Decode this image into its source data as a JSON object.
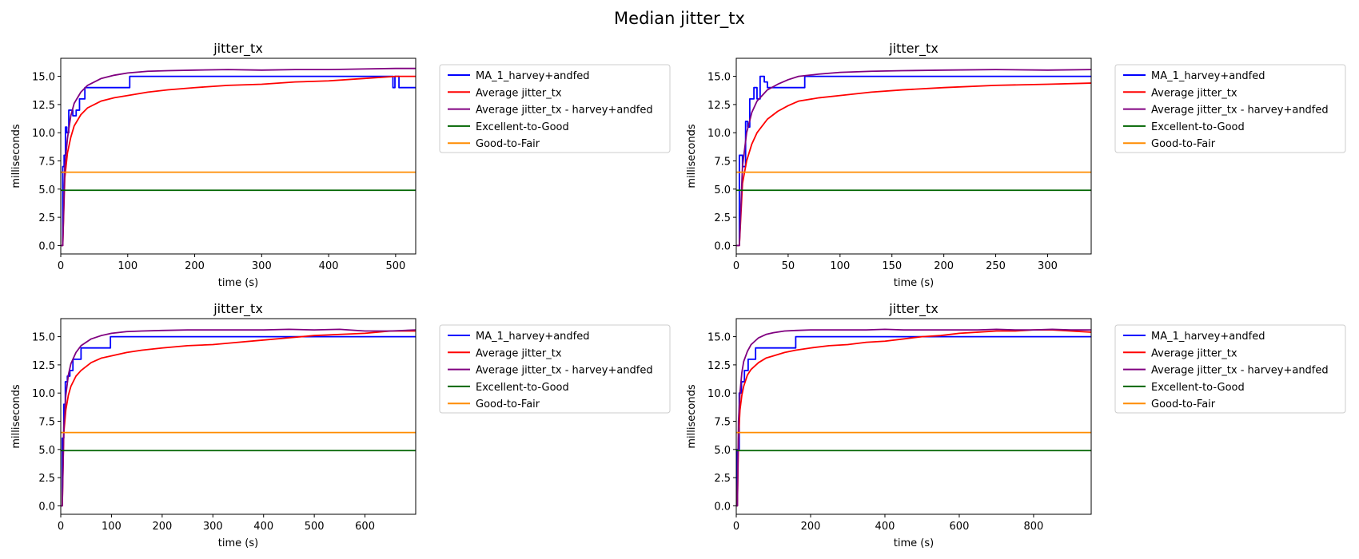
{
  "figure": {
    "suptitle": "Median jitter_tx"
  },
  "colors": {
    "MA_1_harvey+andfed": "#0000ff",
    "Average jitter_tx": "#ff0000",
    "Average jitter_tx - harvey+andfed": "#800080",
    "Excellent-to-Good": "#006400",
    "Good-to-Fair": "#ff8c00"
  },
  "chart_data": [
    {
      "type": "line",
      "title": "jitter_tx",
      "xlabel": "time (s)",
      "ylabel": "milliseconds",
      "xlim": [
        0,
        530
      ],
      "ylim": [
        -0.75,
        16.6
      ],
      "xticks": [
        0,
        100,
        200,
        300,
        400,
        500
      ],
      "yticks": [
        0.0,
        2.5,
        5.0,
        7.5,
        10.0,
        12.5,
        15.0
      ],
      "grid": false,
      "legend": "outside-right-top",
      "series": [
        {
          "name": "MA_1_harvey+andfed",
          "x": [
            0,
            3,
            3,
            5,
            5,
            7,
            7,
            9,
            9,
            12,
            12,
            18,
            18,
            23,
            23,
            28,
            28,
            36,
            36,
            103,
            103,
            496,
            496,
            499,
            499,
            505,
            505,
            530
          ],
          "y": [
            0,
            0,
            7,
            7,
            8,
            8,
            10.5,
            10.5,
            10,
            10,
            12,
            12,
            11.5,
            11.5,
            12,
            12,
            13,
            13,
            14,
            14,
            15,
            15,
            14,
            14,
            15,
            15,
            14,
            14
          ]
        },
        {
          "name": "Average jitter_tx",
          "x": [
            0,
            3,
            6,
            10,
            15,
            20,
            30,
            40,
            60,
            80,
            100,
            130,
            160,
            200,
            250,
            300,
            350,
            400,
            450,
            500,
            530
          ],
          "y": [
            0,
            0,
            6,
            8.2,
            9.6,
            10.6,
            11.6,
            12.2,
            12.8,
            13.1,
            13.3,
            13.6,
            13.8,
            14,
            14.2,
            14.3,
            14.5,
            14.6,
            14.8,
            15,
            15
          ]
        },
        {
          "name": "Average jitter_tx - harvey+andfed",
          "x": [
            0,
            3,
            6,
            10,
            15,
            20,
            30,
            40,
            60,
            80,
            100,
            130,
            160,
            200,
            250,
            300,
            350,
            400,
            450,
            500,
            530
          ],
          "y": [
            0,
            0,
            7,
            9.5,
            11.5,
            12.6,
            13.6,
            14.2,
            14.8,
            15.1,
            15.3,
            15.45,
            15.5,
            15.55,
            15.6,
            15.55,
            15.6,
            15.6,
            15.65,
            15.7,
            15.7
          ]
        },
        {
          "name": "Excellent-to-Good",
          "x": [
            0,
            530
          ],
          "y": [
            4.9,
            4.9
          ]
        },
        {
          "name": "Good-to-Fair",
          "x": [
            0,
            530
          ],
          "y": [
            6.5,
            6.5
          ]
        }
      ]
    },
    {
      "type": "line",
      "title": "jitter_tx",
      "xlabel": "time (s)",
      "ylabel": "milliseconds",
      "xlim": [
        0,
        342
      ],
      "ylim": [
        -0.75,
        16.6
      ],
      "xticks": [
        0,
        50,
        100,
        150,
        200,
        250,
        300
      ],
      "yticks": [
        0.0,
        2.5,
        5.0,
        7.5,
        10.0,
        12.5,
        15.0
      ],
      "grid": false,
      "legend": "outside-right-top",
      "series": [
        {
          "name": "MA_1_harvey+andfed",
          "x": [
            0,
            3,
            3,
            6,
            6,
            9,
            9,
            11,
            11,
            13,
            13,
            17,
            17,
            20,
            20,
            23,
            23,
            27,
            27,
            30,
            30,
            66,
            66,
            342
          ],
          "y": [
            0,
            0,
            8,
            8,
            7,
            7,
            11,
            11,
            10.5,
            10.5,
            13,
            13,
            14,
            14,
            13,
            13,
            15,
            15,
            14.5,
            14.5,
            14,
            14,
            15,
            15
          ]
        },
        {
          "name": "Average jitter_tx",
          "x": [
            0,
            3,
            6,
            10,
            15,
            20,
            30,
            40,
            50,
            60,
            80,
            100,
            130,
            160,
            200,
            250,
            300,
            342
          ],
          "y": [
            0,
            0,
            5.5,
            7.5,
            9,
            10,
            11.2,
            11.9,
            12.4,
            12.8,
            13.1,
            13.3,
            13.6,
            13.8,
            14,
            14.2,
            14.3,
            14.4
          ]
        },
        {
          "name": "Average jitter_tx - harvey+andfed",
          "x": [
            0,
            3,
            6,
            10,
            15,
            20,
            30,
            40,
            50,
            60,
            80,
            100,
            130,
            160,
            200,
            250,
            300,
            342
          ],
          "y": [
            0,
            0,
            7,
            10,
            11.8,
            12.8,
            13.8,
            14.3,
            14.7,
            15,
            15.2,
            15.35,
            15.45,
            15.5,
            15.55,
            15.6,
            15.55,
            15.6
          ]
        },
        {
          "name": "Excellent-to-Good",
          "x": [
            0,
            342
          ],
          "y": [
            4.9,
            4.9
          ]
        },
        {
          "name": "Good-to-Fair",
          "x": [
            0,
            342
          ],
          "y": [
            6.5,
            6.5
          ]
        }
      ]
    },
    {
      "type": "line",
      "title": "jitter_tx",
      "xlabel": "time (s)",
      "ylabel": "milliseconds",
      "xlim": [
        0,
        700
      ],
      "ylim": [
        -0.75,
        16.6
      ],
      "xticks": [
        0,
        100,
        200,
        300,
        400,
        500,
        600
      ],
      "yticks": [
        0.0,
        2.5,
        5.0,
        7.5,
        10.0,
        12.5,
        15.0
      ],
      "grid": false,
      "legend": "outside-right-top",
      "series": [
        {
          "name": "MA_1_harvey+andfed",
          "x": [
            0,
            3,
            3,
            6,
            6,
            9,
            9,
            13,
            13,
            18,
            18,
            24,
            24,
            28,
            28,
            40,
            40,
            98,
            98,
            700
          ],
          "y": [
            0,
            0,
            6,
            6,
            9,
            9,
            11,
            11,
            11.5,
            11.5,
            12,
            12,
            13,
            13,
            13,
            13,
            14,
            14,
            15,
            15
          ]
        },
        {
          "name": "Average jitter_tx",
          "x": [
            0,
            3,
            6,
            10,
            15,
            20,
            30,
            40,
            60,
            80,
            100,
            130,
            160,
            200,
            250,
            300,
            350,
            400,
            450,
            500,
            550,
            600,
            650,
            700
          ],
          "y": [
            0,
            0,
            6.5,
            8.5,
            9.8,
            10.6,
            11.5,
            12,
            12.7,
            13.1,
            13.3,
            13.6,
            13.8,
            14,
            14.2,
            14.3,
            14.5,
            14.7,
            14.9,
            15.1,
            15.2,
            15.3,
            15.5,
            15.5
          ]
        },
        {
          "name": "Average jitter_tx - harvey+andfed",
          "x": [
            0,
            3,
            6,
            10,
            15,
            20,
            30,
            40,
            60,
            80,
            100,
            130,
            160,
            200,
            250,
            300,
            350,
            400,
            450,
            500,
            550,
            600,
            650,
            700
          ],
          "y": [
            0,
            0,
            7,
            9.8,
            11.6,
            12.6,
            13.6,
            14.2,
            14.8,
            15.1,
            15.3,
            15.45,
            15.5,
            15.55,
            15.6,
            15.6,
            15.6,
            15.6,
            15.65,
            15.6,
            15.65,
            15.5,
            15.5,
            15.6
          ]
        },
        {
          "name": "Excellent-to-Good",
          "x": [
            0,
            700
          ],
          "y": [
            4.9,
            4.9
          ]
        },
        {
          "name": "Good-to-Fair",
          "x": [
            0,
            700
          ],
          "y": [
            6.5,
            6.5
          ]
        }
      ]
    },
    {
      "type": "line",
      "title": "jitter_tx",
      "xlabel": "time (s)",
      "ylabel": "milliseconds",
      "xlim": [
        0,
        955
      ],
      "ylim": [
        -0.75,
        16.6
      ],
      "xticks": [
        0,
        200,
        400,
        600,
        800
      ],
      "yticks": [
        0.0,
        2.5,
        5.0,
        7.5,
        10.0,
        12.5,
        15.0
      ],
      "grid": false,
      "legend": "outside-right-top",
      "series": [
        {
          "name": "MA_1_harvey+andfed",
          "x": [
            0,
            3,
            3,
            8,
            8,
            14,
            14,
            22,
            22,
            32,
            32,
            52,
            52,
            160,
            160,
            955
          ],
          "y": [
            0,
            0,
            5,
            5,
            10,
            10,
            11,
            11,
            12,
            12,
            13,
            13,
            14,
            14,
            15,
            15
          ]
        },
        {
          "name": "Average jitter_tx",
          "x": [
            0,
            3,
            6,
            10,
            15,
            20,
            30,
            40,
            60,
            80,
            100,
            130,
            160,
            200,
            250,
            300,
            350,
            400,
            450,
            500,
            550,
            600,
            650,
            700,
            750,
            800,
            850,
            900,
            955
          ],
          "y": [
            0,
            0,
            6,
            8.5,
            9.8,
            10.6,
            11.6,
            12.1,
            12.7,
            13.1,
            13.3,
            13.6,
            13.8,
            14,
            14.2,
            14.3,
            14.5,
            14.6,
            14.8,
            15,
            15.1,
            15.3,
            15.4,
            15.5,
            15.5,
            15.6,
            15.6,
            15.5,
            15.4
          ]
        },
        {
          "name": "Average jitter_tx - harvey+andfed",
          "x": [
            0,
            3,
            6,
            10,
            15,
            20,
            30,
            40,
            60,
            80,
            100,
            130,
            160,
            200,
            250,
            300,
            350,
            400,
            450,
            500,
            550,
            600,
            650,
            700,
            750,
            800,
            850,
            900,
            955
          ],
          "y": [
            0,
            0,
            7.5,
            10,
            11.8,
            12.8,
            13.7,
            14.3,
            14.9,
            15.2,
            15.35,
            15.5,
            15.55,
            15.6,
            15.6,
            15.6,
            15.6,
            15.65,
            15.6,
            15.6,
            15.6,
            15.6,
            15.6,
            15.65,
            15.6,
            15.6,
            15.65,
            15.6,
            15.6
          ]
        },
        {
          "name": "Excellent-to-Good",
          "x": [
            0,
            955
          ],
          "y": [
            4.9,
            4.9
          ]
        },
        {
          "name": "Good-to-Fair",
          "x": [
            0,
            955
          ],
          "y": [
            6.5,
            6.5
          ]
        }
      ]
    }
  ]
}
